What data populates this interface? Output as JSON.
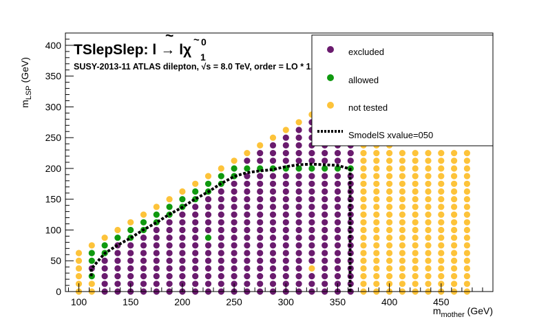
{
  "chart_data": {
    "type": "scatter",
    "title_main": "TSlepSlep: ",
    "title_formula": {
      "slep": "l",
      "arrow": "→",
      "lep": "l",
      "chi": "χ",
      "sub": "1",
      "sup": "0"
    },
    "subtitle": {
      "prefix": "SUSY-2013-11  ATLAS dilepton,  ",
      "sqrt_s": "√s",
      "suffix": " =  8.0 TeV, order =  LO * 1.2"
    },
    "xlabel": {
      "main": "m",
      "sub": "mother",
      "unit": " (GeV)"
    },
    "ylabel": {
      "main": "m",
      "sub": "LSP",
      "unit": " (GeV)"
    },
    "xlim": [
      87,
      500
    ],
    "ylim": [
      0,
      420
    ],
    "x_ticks": [
      100,
      150,
      200,
      250,
      300,
      350,
      400,
      450
    ],
    "y_ticks": [
      0,
      50,
      100,
      150,
      200,
      250,
      300,
      350,
      400
    ],
    "x_tick_labels": [
      "100",
      "150",
      "200",
      "250",
      "300",
      "350",
      "400",
      "450"
    ],
    "y_tick_labels": [
      "0",
      "50",
      "100",
      "150",
      "200",
      "250",
      "300",
      "350",
      "400"
    ],
    "legend_position": "top-right",
    "legend": [
      {
        "label": "excluded",
        "kind": "marker",
        "color": "#6a1b6e"
      },
      {
        "label": "allowed",
        "kind": "marker",
        "color": "#0f990f"
      },
      {
        "label": "not tested",
        "kind": "marker",
        "color": "#fdc33a"
      },
      {
        "label": "SmodelS xvalue=050",
        "kind": "line",
        "color": "#000000"
      }
    ],
    "colors": {
      "excluded": "#6a1b6e",
      "allowed": "#0f990f",
      "not_tested": "#fdc33a",
      "contour": "#000000"
    },
    "grid": {
      "x_start": 100,
      "x_step": 12.5,
      "x_count": 31,
      "y_step": 12.5,
      "y_top_by_column": [
        62,
        75,
        87,
        100,
        112,
        125,
        137,
        150,
        162,
        175,
        187,
        200,
        212,
        225,
        237,
        250,
        262,
        275,
        287,
        300,
        287,
        275,
        262,
        250,
        237,
        225,
        225,
        225,
        225,
        225,
        225
      ],
      "allowed_points": [
        [
          112,
          25
        ],
        [
          112,
          50
        ],
        [
          112,
          62
        ],
        [
          125,
          62
        ],
        [
          125,
          75
        ],
        [
          137,
          87
        ],
        [
          150,
          87
        ],
        [
          150,
          100
        ],
        [
          162,
          100
        ],
        [
          162,
          112
        ],
        [
          175,
          112
        ],
        [
          175,
          125
        ],
        [
          187,
          125
        ],
        [
          187,
          137
        ],
        [
          200,
          137
        ],
        [
          200,
          150
        ],
        [
          212,
          150
        ],
        [
          212,
          162
        ],
        [
          225,
          87
        ],
        [
          225,
          162
        ],
        [
          225,
          175
        ],
        [
          237,
          175
        ],
        [
          237,
          187
        ],
        [
          250,
          187
        ],
        [
          250,
          200
        ],
        [
          262,
          200
        ],
        [
          275,
          200
        ],
        [
          287,
          200
        ],
        [
          300,
          200
        ],
        [
          312,
          200
        ],
        [
          325,
          200
        ],
        [
          337,
          200
        ],
        [
          350,
          200
        ],
        [
          362,
          200
        ]
      ],
      "not_tested_points": [
        [
          100,
          0
        ],
        [
          100,
          12
        ],
        [
          100,
          25
        ],
        [
          100,
          37
        ],
        [
          100,
          50
        ],
        [
          100,
          62
        ],
        [
          112,
          0
        ],
        [
          112,
          12
        ],
        [
          112,
          75
        ],
        [
          125,
          87
        ],
        [
          137,
          100
        ],
        [
          150,
          112
        ],
        [
          162,
          125
        ],
        [
          175,
          137
        ],
        [
          187,
          150
        ],
        [
          200,
          162
        ],
        [
          212,
          175
        ],
        [
          225,
          187
        ],
        [
          237,
          200
        ],
        [
          250,
          212
        ],
        [
          262,
          225
        ],
        [
          275,
          237
        ],
        [
          287,
          250
        ],
        [
          300,
          262
        ],
        [
          312,
          275
        ],
        [
          325,
          287
        ],
        [
          325,
          37
        ],
        [
          337,
          275
        ],
        [
          350,
          262
        ],
        [
          362,
          250
        ]
      ],
      "not_tested_from_x": 375
    },
    "contour": {
      "x": [
        112,
        112,
        125,
        137,
        150,
        162,
        175,
        187,
        200,
        212,
        225,
        237,
        250,
        262,
        275,
        287,
        300,
        312,
        325,
        337,
        350,
        362,
        362
      ],
      "y": [
        25,
        37,
        62,
        75,
        87,
        100,
        112,
        125,
        137,
        150,
        162,
        175,
        187,
        193,
        196,
        198,
        203,
        206,
        207,
        206,
        205,
        199,
        0
      ]
    }
  }
}
